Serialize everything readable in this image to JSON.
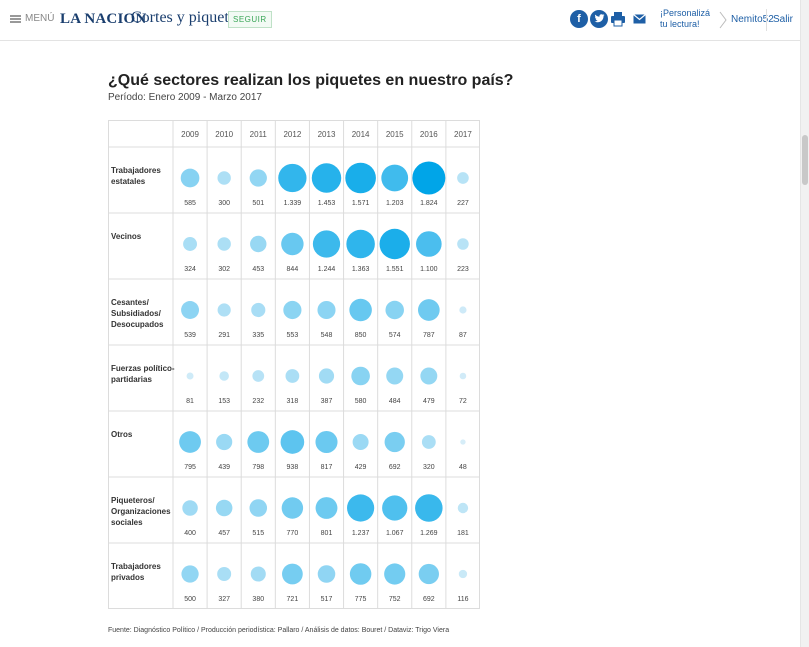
{
  "header": {
    "menu_label": "MENÚ",
    "logo_text": "LA NACION",
    "section_title": "Cortes y piquetes",
    "follow_label": "SEGUIR",
    "social": {
      "facebook": "f",
      "twitter": "t"
    },
    "personalize_label": "¡Personalizá tu lectura!",
    "user_name": "Nemito52",
    "logout_label": "Salir",
    "brand_color": "#1e5fa6"
  },
  "chart_data": {
    "type": "bubble",
    "title": "¿Qué sectores realizan los piquetes en nuestro país?",
    "subtitle": "Período: Enero 2009 - Marzo 2017",
    "years": [
      "2009",
      "2010",
      "2011",
      "2012",
      "2013",
      "2014",
      "2015",
      "2016",
      "2017"
    ],
    "rows": [
      {
        "label": [
          "Trabajadores",
          "estatales"
        ],
        "values": [
          585,
          300,
          501,
          1339,
          1453,
          1571,
          1203,
          1824,
          227
        ],
        "display": [
          "585",
          "300",
          "501",
          "1.339",
          "1.453",
          "1.571",
          "1.203",
          "1.824",
          "227"
        ]
      },
      {
        "label": [
          "Vecinos"
        ],
        "values": [
          324,
          302,
          453,
          844,
          1244,
          1363,
          1551,
          1100,
          223
        ],
        "display": [
          "324",
          "302",
          "453",
          "844",
          "1.244",
          "1.363",
          "1.551",
          "1.100",
          "223"
        ]
      },
      {
        "label": [
          "Cesantes/",
          "Subsidiados/",
          "Desocupados"
        ],
        "values": [
          539,
          291,
          335,
          553,
          548,
          850,
          574,
          787,
          87
        ],
        "display": [
          "539",
          "291",
          "335",
          "553",
          "548",
          "850",
          "574",
          "787",
          "87"
        ]
      },
      {
        "label": [
          "Fuerzas político-",
          "partidarias"
        ],
        "values": [
          81,
          153,
          232,
          318,
          387,
          580,
          484,
          479,
          72
        ],
        "display": [
          "81",
          "153",
          "232",
          "318",
          "387",
          "580",
          "484",
          "479",
          "72"
        ]
      },
      {
        "label": [
          "Otros"
        ],
        "values": [
          795,
          439,
          798,
          938,
          817,
          429,
          692,
          320,
          48
        ],
        "display": [
          "795",
          "439",
          "798",
          "938",
          "817",
          "429",
          "692",
          "320",
          "48"
        ]
      },
      {
        "label": [
          "Piqueteros/",
          "Organizaciones",
          "sociales"
        ],
        "values": [
          400,
          457,
          515,
          770,
          801,
          1237,
          1067,
          1269,
          181
        ],
        "display": [
          "400",
          "457",
          "515",
          "770",
          "801",
          "1.237",
          "1.067",
          "1.269",
          "181"
        ]
      },
      {
        "label": [
          "Trabajadores",
          "privados"
        ],
        "values": [
          500,
          327,
          380,
          721,
          517,
          775,
          752,
          692,
          116
        ],
        "display": [
          "500",
          "327",
          "380",
          "721",
          "517",
          "775",
          "752",
          "692",
          "116"
        ]
      }
    ],
    "max_value": 1824,
    "colors": {
      "low": "#e2f1f9",
      "high": "#00a5e8"
    },
    "source": "Fuente: Diagnóstico Político / Producción periodística: Pallaro / Análisis de datos: Bouret / Dataviz: Trigo Viera"
  }
}
